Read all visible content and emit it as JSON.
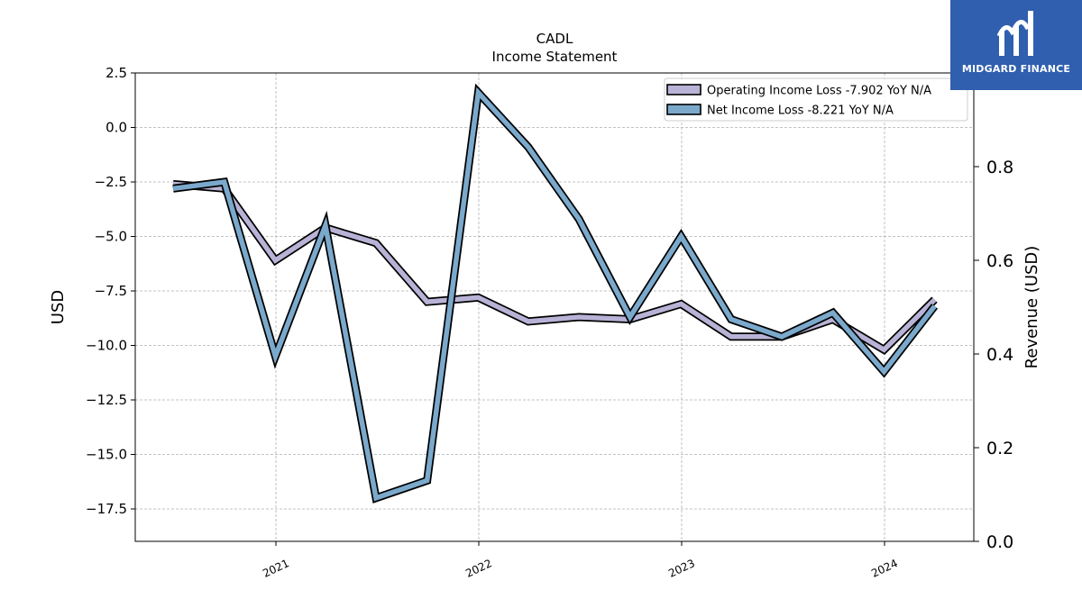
{
  "chart_data": {
    "type": "line",
    "title": "CADL",
    "subtitle": "Income Statement",
    "ylabel": "USD",
    "y2label": "Revenue (USD)",
    "ylim": [
      -18,
      2.5
    ],
    "y2lim": [
      0,
      1.0
    ],
    "yticks": [
      "2.5",
      "0.0",
      "−2.5",
      "−5.0",
      "−7.5",
      "−10.0",
      "−12.5",
      "−15.0",
      "−17.5"
    ],
    "ytick_values": [
      2.5,
      0,
      -2.5,
      -5,
      -7.5,
      -10,
      -12.5,
      -15,
      -17.5
    ],
    "y2ticks": [
      "0.0",
      "0.2",
      "0.4",
      "0.6",
      "0.8"
    ],
    "y2tick_values": [
      0,
      0.2,
      0.4,
      0.6,
      0.8
    ],
    "xticks": [
      "2021",
      "2022",
      "2023",
      "2024"
    ],
    "xtick_values": [
      "2021-01-01",
      "2022-01-01",
      "2023-01-01",
      "2024-01-01"
    ],
    "x": [
      "2020-06-30",
      "2020-09-30",
      "2020-12-31",
      "2021-03-31",
      "2021-06-30",
      "2021-09-30",
      "2021-12-31",
      "2022-03-31",
      "2022-06-30",
      "2022-09-30",
      "2022-12-31",
      "2023-03-31",
      "2023-06-30",
      "2023-09-30",
      "2023-12-31",
      "2024-03-31"
    ],
    "series": [
      {
        "name": "Operating Income Loss  -7.902 YoY N/A",
        "color": "#b8b3d6",
        "values": [
          -2.6,
          -2.8,
          -6.1,
          -4.6,
          -5.3,
          -8.0,
          -7.8,
          -8.9,
          -8.7,
          -8.8,
          -8.1,
          -9.6,
          -9.6,
          -8.8,
          -10.2,
          -7.9
        ]
      },
      {
        "name": "Net Income Loss  -8.221 YoY N/A",
        "color": "#7aa9cc",
        "values": [
          -2.8,
          -2.5,
          -10.5,
          -4.5,
          -17.0,
          -16.2,
          1.6,
          -0.9,
          -4.2,
          -8.7,
          -5.0,
          -8.8,
          -9.6,
          -8.5,
          -11.2,
          -8.2
        ]
      }
    ],
    "legend_position": "top-right",
    "grid": true
  },
  "logo": {
    "text": "MIDGARD FINANCE"
  }
}
